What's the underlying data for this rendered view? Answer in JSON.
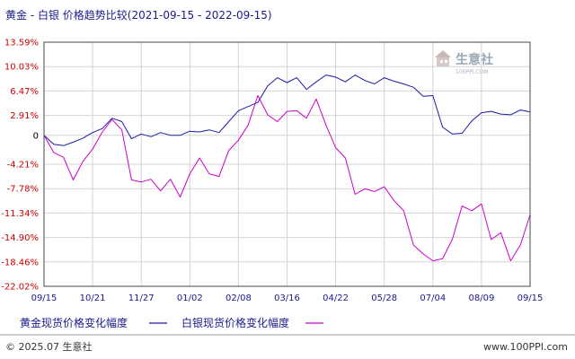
{
  "chart_data": {
    "type": "line",
    "title": "黄金 - 白银 价格趋势比较(2021-09-15 - 2022-09-15)",
    "y_ticks": [
      "13.59%",
      "10.03%",
      "6.47%",
      "2.91%",
      "0",
      "-4.21%",
      "-7.78%",
      "-11.34%",
      "-14.90%",
      "-18.46%",
      "-22.02%"
    ],
    "y_tick_values": [
      13.59,
      10.03,
      6.47,
      2.91,
      0,
      -4.21,
      -7.78,
      -11.34,
      -14.9,
      -18.46,
      -22.02
    ],
    "ylim": [
      -22.02,
      13.59
    ],
    "x_ticks": [
      "09/15",
      "10/21",
      "11/27",
      "01/02",
      "02/08",
      "03/16",
      "04/22",
      "05/28",
      "07/04",
      "08/09",
      "09/15"
    ],
    "grid": true,
    "series": [
      {
        "name": "黄金现货价格变化幅度",
        "color": "#1a1aa6",
        "x": [
          0,
          2,
          4,
          6,
          8,
          10,
          12,
          14,
          16,
          18,
          20,
          22,
          24,
          26,
          28,
          30,
          32,
          34,
          36,
          38,
          40,
          42,
          44,
          46,
          48,
          50,
          52,
          54,
          56,
          58,
          60,
          62,
          64,
          66,
          68,
          70,
          72,
          74,
          76,
          78,
          80,
          82,
          84,
          86,
          88,
          90,
          92,
          94,
          96,
          98,
          100
        ],
        "values": [
          0.0,
          -1.3,
          -1.5,
          -1.0,
          -0.4,
          0.4,
          1.0,
          2.5,
          2.0,
          -0.5,
          0.2,
          -0.2,
          0.4,
          0.0,
          0.0,
          0.6,
          0.5,
          0.8,
          0.4,
          2.0,
          3.6,
          4.2,
          4.8,
          7.2,
          8.4,
          7.7,
          8.4,
          6.7,
          7.8,
          8.8,
          8.5,
          7.8,
          8.8,
          8.0,
          7.5,
          8.4,
          7.9,
          7.5,
          7.0,
          5.7,
          5.8,
          1.2,
          0.2,
          0.3,
          2.1,
          3.3,
          3.5,
          3.1,
          3.0,
          3.7,
          3.4
        ]
      },
      {
        "name": "白银现货价格变化幅度",
        "color": "#cc00cc",
        "x": [
          0,
          2,
          4,
          6,
          8,
          10,
          12,
          14,
          16,
          18,
          20,
          22,
          24,
          26,
          28,
          30,
          32,
          34,
          36,
          38,
          40,
          42,
          44,
          46,
          48,
          50,
          52,
          54,
          56,
          58,
          60,
          62,
          64,
          66,
          68,
          70,
          72,
          74,
          76,
          78,
          80,
          82,
          84,
          86,
          88,
          90,
          92,
          94,
          96,
          98,
          100
        ],
        "values": [
          0.0,
          -2.5,
          -3.2,
          -6.5,
          -3.8,
          -2.0,
          0.5,
          2.3,
          0.8,
          -6.5,
          -6.8,
          -6.4,
          -8.1,
          -6.4,
          -9.0,
          -5.6,
          -3.3,
          -5.6,
          -6.0,
          -2.2,
          -0.7,
          1.5,
          5.8,
          3.0,
          2.0,
          3.5,
          3.6,
          2.5,
          5.3,
          1.5,
          -1.8,
          -3.3,
          -8.6,
          -7.8,
          -8.2,
          -7.5,
          -9.5,
          -11.0,
          -16.0,
          -17.3,
          -18.3,
          -18.0,
          -15.2,
          -10.3,
          -11.0,
          -10.0,
          -15.2,
          -14.2,
          -18.3,
          -16.0,
          -11.6
        ]
      }
    ]
  },
  "watermark": {
    "name": "生意社",
    "url": "100PPI.COM"
  },
  "footer": {
    "left": "© 2025.07 生意社",
    "right": "www.100PPI.com"
  }
}
